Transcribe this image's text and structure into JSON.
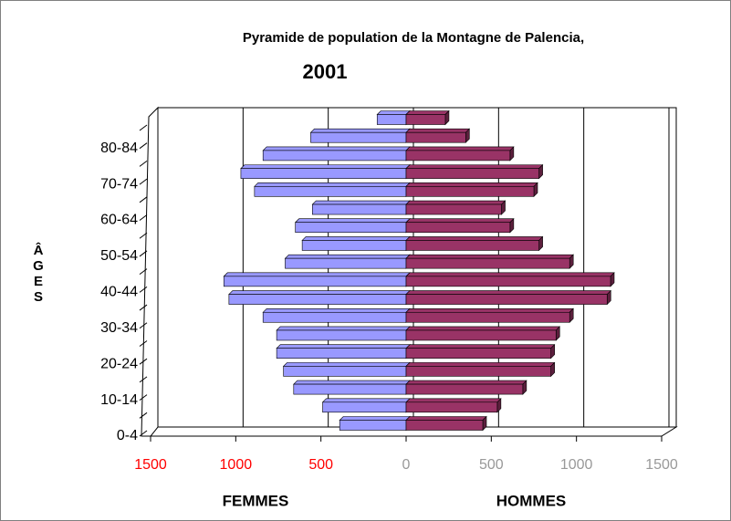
{
  "chart_data": {
    "type": "pyramid",
    "title": "Pyramide de population de la Montagne de Palencia,",
    "subtitle": "2001",
    "ylabel": "ÂGES",
    "categories": [
      "0-4",
      null,
      "10-14",
      null,
      "20-24",
      null,
      "30-34",
      null,
      "40-44",
      null,
      "50-54",
      null,
      "60-64",
      null,
      "70-74",
      null,
      "80-84",
      null
    ],
    "series": [
      {
        "name": "FEMMES",
        "color": "#9999ff",
        "values": [
          -390,
          -490,
          -660,
          -720,
          -760,
          -760,
          -840,
          -1040,
          -1070,
          -710,
          -610,
          -650,
          -550,
          -890,
          -970,
          -840,
          -560,
          -170
        ]
      },
      {
        "name": "HOMMES",
        "color": "#993366",
        "values": [
          450,
          535,
          685,
          850,
          850,
          880,
          960,
          1180,
          1200,
          960,
          780,
          610,
          560,
          750,
          780,
          610,
          350,
          230
        ]
      }
    ],
    "xlim": [
      -1500,
      1500
    ],
    "xticks": [
      {
        "value": -1500,
        "label": "1500"
      },
      {
        "value": -1000,
        "label": "1000"
      },
      {
        "value": -500,
        "label": "500"
      },
      0,
      500,
      1000,
      1500
    ],
    "grid": true
  }
}
